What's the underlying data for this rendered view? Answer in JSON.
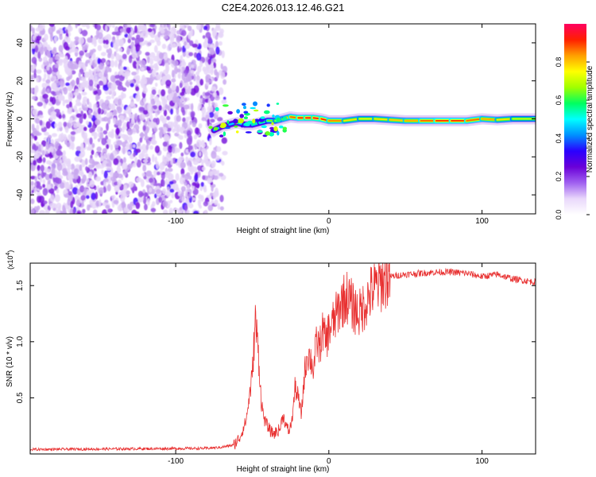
{
  "figure_title": "C2E4.2026.013.12.46.G21",
  "chart_data": [
    {
      "type": "heatmap",
      "title": "C2E4.2026.013.12.46.G21",
      "xlabel": "Height of straight line (km)",
      "ylabel": "Frequency (Hz)",
      "xlim": [
        -195,
        135
      ],
      "ylim": [
        -50,
        50
      ],
      "x_ticks": [
        -100,
        0,
        100
      ],
      "x_tick_labels": [
        "-100",
        "0",
        "100"
      ],
      "y_ticks": [
        -40,
        -20,
        0,
        20,
        40
      ],
      "y_tick_labels": [
        "-40",
        "-20",
        "0",
        "20",
        "40"
      ],
      "colorbar": {
        "label": "Normalized spectral amplitude",
        "range": [
          0,
          1
        ],
        "ticks": [
          0.0,
          0.2,
          0.4,
          0.6,
          0.8
        ],
        "tick_labels": [
          "0.0",
          "0.2",
          "0.4",
          "0.6",
          "0.8"
        ],
        "colormap": [
          "#ffffff",
          "#e9d8fb",
          "#a060f0",
          "#6a00d8",
          "#2a00ff",
          "#0090ff",
          "#00ffff",
          "#00ff60",
          "#a0ff00",
          "#ffff00",
          "#ffa000",
          "#ff2000",
          "#ff0060"
        ]
      },
      "noise_region_x": [
        -195,
        -72
      ],
      "signal_trace": {
        "x": [
          -75,
          -70,
          -65,
          -60,
          -55,
          -50,
          -45,
          -40,
          -35,
          -30,
          -25,
          -20,
          -15,
          -10,
          -5,
          0,
          10,
          20,
          30,
          40,
          50,
          60,
          70,
          80,
          90,
          100,
          110,
          120,
          135
        ],
        "y": [
          -6,
          -4,
          -3,
          -2,
          -3,
          -3,
          -2,
          -1,
          -1,
          0,
          1,
          0.5,
          0.5,
          0.5,
          0,
          -1,
          -1,
          0,
          0,
          -0.5,
          -1,
          -1,
          -1,
          -1,
          -1,
          0,
          -0.5,
          0,
          0
        ],
        "amplitude": [
          0.5,
          0.45,
          0.45,
          0.5,
          0.5,
          0.55,
          0.55,
          0.6,
          0.7,
          0.75,
          0.85,
          0.9,
          0.95,
          0.95,
          0.95,
          0.9,
          0.8,
          0.75,
          0.75,
          0.8,
          0.8,
          0.85,
          0.9,
          0.92,
          0.9,
          0.85,
          0.8,
          0.75,
          0.7
        ]
      }
    },
    {
      "type": "line",
      "xlabel": "Height of straight line (km)",
      "ylabel": "SNR (10 * v/v)",
      "y_exponent_label": "(x10",
      "y_exponent": "4",
      "xlim": [
        -195,
        135
      ],
      "ylim": [
        0,
        1.7
      ],
      "x_ticks": [
        -100,
        0,
        100
      ],
      "x_tick_labels": [
        "-100",
        "0",
        "100"
      ],
      "y_ticks": [
        0.5,
        1.0,
        1.5
      ],
      "y_tick_labels": [
        "0.5",
        "1.0",
        "1.5"
      ],
      "series": [
        {
          "name": "SNR",
          "color": "#e83030",
          "x": [
            -195,
            -80,
            -70,
            -62,
            -58,
            -54,
            -50,
            -48,
            -46,
            -44,
            -42,
            -40,
            -38,
            -36,
            -34,
            -32,
            -30,
            -28,
            -26,
            -24,
            -22,
            -20,
            -18,
            -16,
            -14,
            -12,
            -10,
            -8,
            -6,
            -4,
            -2,
            0,
            4,
            8,
            12,
            16,
            20,
            24,
            28,
            32,
            36,
            40,
            50,
            60,
            70,
            80,
            90,
            100,
            110,
            120,
            135
          ],
          "y": [
            0.04,
            0.05,
            0.06,
            0.08,
            0.15,
            0.3,
            0.7,
            1.2,
            0.9,
            0.45,
            0.3,
            0.25,
            0.2,
            0.18,
            0.2,
            0.22,
            0.35,
            0.25,
            0.2,
            0.3,
            0.6,
            0.5,
            0.35,
            0.7,
            0.9,
            0.85,
            0.75,
            1.0,
            0.95,
            1.1,
            1.0,
            1.1,
            1.2,
            1.35,
            1.4,
            1.3,
            1.25,
            1.35,
            1.45,
            1.5,
            1.55,
            1.58,
            1.6,
            1.61,
            1.62,
            1.62,
            1.61,
            1.58,
            1.6,
            1.56,
            1.53
          ]
        }
      ]
    }
  ]
}
